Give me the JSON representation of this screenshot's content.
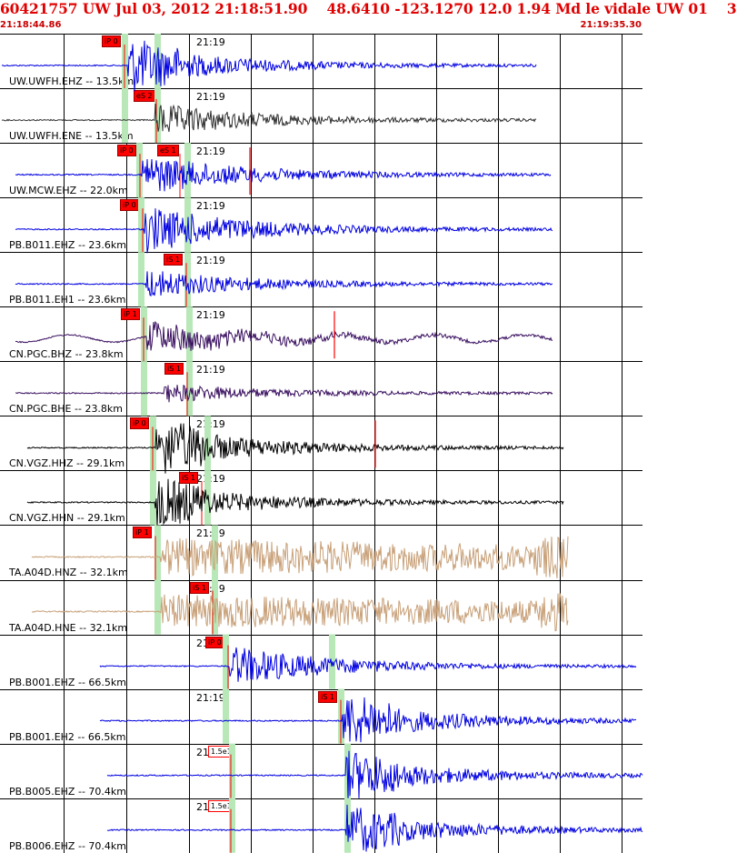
{
  "header": {
    "title": "60421757 UW Jul 03, 2012 21:18:51.90    48.6410 -123.1270 12.0 1.94 Md le vidale UW 01    3",
    "start_time": "21:18:44.86",
    "end_time": "21:19:35.30"
  },
  "colors": {
    "blue_trace": "#0000e0",
    "gray_trace": "#303030",
    "purple_trace": "#3a1060",
    "black_trace": "#000000",
    "tan_trace": "#c8a078",
    "pick_red": "#ff0000",
    "phase_green": "#b8e8b8"
  },
  "time_marker_label": "21:19",
  "channels": [
    {
      "label": "UW.UWFH.EHZ -- 13.5km",
      "picks": [
        "iP 0"
      ],
      "color": "blue"
    },
    {
      "label": "UW.UWFH.ENE -- 13.5km",
      "picks": [
        "eS 2"
      ],
      "color": "gray"
    },
    {
      "label": "UW.MCW.EHZ -- 22.0km",
      "picks": [
        "iP 0",
        "eS 1"
      ],
      "color": "blue"
    },
    {
      "label": "PB.B011.EHZ -- 23.6km",
      "picks": [
        "iP 0"
      ],
      "color": "blue"
    },
    {
      "label": "PB.B011.EH1 -- 23.6km",
      "picks": [
        "iS 1"
      ],
      "color": "blue"
    },
    {
      "label": "CN.PGC.BHZ -- 23.8km",
      "picks": [
        "iP 1"
      ],
      "color": "purple"
    },
    {
      "label": "CN.PGC.BHE -- 23.8km",
      "picks": [
        "iS 1"
      ],
      "color": "purple"
    },
    {
      "label": "CN.VGZ.HHZ -- 29.1km",
      "picks": [
        "iP 0"
      ],
      "color": "black"
    },
    {
      "label": "CN.VGZ.HHN -- 29.1km",
      "picks": [
        "iS 1"
      ],
      "color": "black"
    },
    {
      "label": "TA.A04D.HNZ -- 32.1km",
      "picks": [
        "iP 1"
      ],
      "color": "tan"
    },
    {
      "label": "TA.A04D.HNE -- 32.1km",
      "picks": [
        "iS 1"
      ],
      "color": "tan"
    },
    {
      "label": "PB.B001.EHZ -- 66.5km",
      "picks": [
        "iP 0"
      ],
      "color": "blue"
    },
    {
      "label": "PB.B001.EH2 -- 66.5km",
      "picks": [
        "iS 1"
      ],
      "color": "blue"
    },
    {
      "label": "PB.B005.EHZ -- 70.4km",
      "picks": [
        "1.5e1"
      ],
      "color": "blue"
    },
    {
      "label": "PB.B006.EHZ -- 70.4km",
      "picks": [
        "1.5e1"
      ],
      "color": "blue"
    }
  ]
}
